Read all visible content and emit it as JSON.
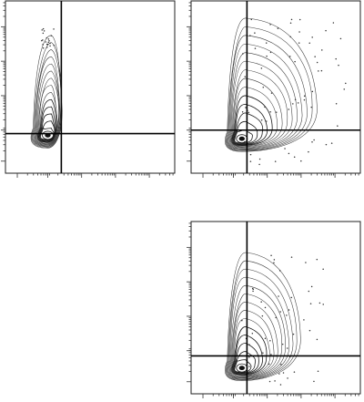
{
  "chart_data": [
    {
      "type": "contour",
      "panel": "top-left",
      "quadrant_gate": {
        "x": 0.33,
        "y": 0.23
      },
      "population": {
        "center": [
          0.25,
          0.22
        ],
        "spread_x": 0.07,
        "tail_top": 0.8
      },
      "scatter_points": 22
    },
    {
      "type": "contour",
      "panel": "top-right",
      "quadrant_gate": {
        "x": 0.33,
        "y": 0.25
      },
      "population": {
        "center": [
          0.3,
          0.2
        ],
        "spread_x": 0.55,
        "tail_top": 0.9
      },
      "scatter_points": 70
    },
    {
      "type": "contour",
      "panel": "bottom-right",
      "quadrant_gate": {
        "x": 0.33,
        "y": 0.22
      },
      "population": {
        "center": [
          0.3,
          0.15
        ],
        "spread_x": 0.42,
        "tail_top": 0.82
      },
      "scatter_points": 55
    }
  ]
}
